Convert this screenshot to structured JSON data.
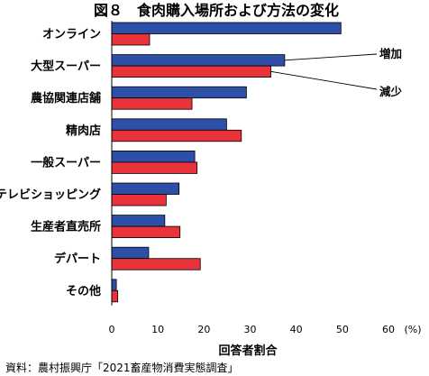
{
  "title": "図８　食肉購入場所および方法の変化",
  "source": "資料：農村振興庁「2021畜産物消費実態調査」",
  "chart_data": {
    "type": "bar",
    "orientation": "horizontal",
    "title": "図８　食肉購入場所および方法の変化",
    "xlabel": "回答者割合",
    "ylabel": "",
    "unit": "(%)",
    "xlim": [
      0,
      60
    ],
    "ticks": [
      0,
      10,
      20,
      30,
      40,
      50,
      60
    ],
    "grid": false,
    "legend_placement": "right, pointing to second category",
    "categories": [
      "オンライン",
      "大型スーパー",
      "農協関連店舗",
      "精肉店",
      "一般スーパー",
      "テレビショッピング",
      "生産者直売所",
      "デパート",
      "その他"
    ],
    "series": [
      {
        "name": "増加",
        "color": "#2e4fa8",
        "values": [
          49.7,
          37.5,
          29.2,
          24.9,
          18.0,
          14.6,
          11.5,
          8.0,
          1.0
        ]
      },
      {
        "name": "減少",
        "color": "#e8333b",
        "values": [
          8.2,
          34.5,
          17.4,
          28.1,
          18.5,
          11.8,
          14.8,
          19.2,
          1.3
        ]
      }
    ]
  }
}
